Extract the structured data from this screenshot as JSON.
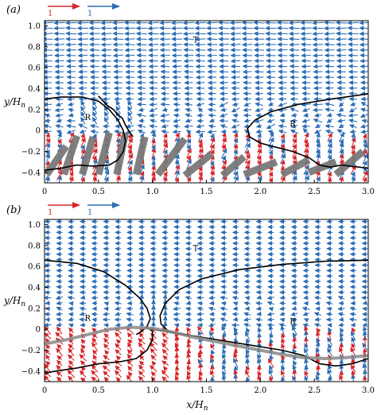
{
  "chart_data": [
    {
      "type": "quiver",
      "panel_label": "(a)",
      "xlabel": "",
      "ylabel": "y/Hn",
      "xlim": [
        0,
        3.0
      ],
      "ylim": [
        -0.5,
        1.05
      ],
      "xticks": [
        "0",
        "0.5",
        "1.0",
        "1.5",
        "2.0",
        "2.5",
        "3.0"
      ],
      "yticks": [
        "−0.4",
        "−0.2",
        "0",
        "0.2",
        "0.4",
        "0.6",
        "0.8",
        "1.0"
      ],
      "x_tick_values": [
        0,
        0.5,
        1.0,
        1.5,
        2.0,
        2.5,
        3.0
      ],
      "y_tick_values": [
        -0.4,
        -0.2,
        0,
        0.2,
        0.4,
        0.6,
        0.8,
        1.0
      ],
      "legend": [
        {
          "label": "1",
          "color": "#d6262b"
        },
        {
          "label": "1",
          "color": "#2d6db5"
        }
      ],
      "annotations": [
        {
          "text": "T",
          "x": 1.4,
          "y": 0.84
        },
        {
          "text": "R",
          "x": 0.4,
          "y": 0.1
        },
        {
          "text": "R",
          "x": 2.3,
          "y": 0.04
        }
      ],
      "series": [
        {
          "style": "solid-black",
          "x": [
            0,
            0.15,
            0.35,
            0.5,
            0.6,
            0.68,
            0.73,
            0.75,
            0.73,
            0.68,
            0.6,
            0.45,
            0.3,
            0.15,
            0
          ],
          "y": [
            0.3,
            0.32,
            0.32,
            0.28,
            0.2,
            0.1,
            0.0,
            -0.1,
            -0.2,
            -0.28,
            -0.33,
            -0.34,
            -0.33,
            -0.36,
            -0.38
          ]
        },
        {
          "style": "solid-black",
          "x": [
            3.0,
            2.65,
            2.35,
            2.1,
            1.95,
            1.88,
            1.9,
            2.0,
            2.15,
            2.3,
            2.45,
            2.55,
            2.65,
            2.75,
            3.0
          ],
          "y": [
            0.35,
            0.3,
            0.25,
            0.18,
            0.1,
            0.02,
            -0.06,
            -0.12,
            -0.16,
            -0.2,
            -0.26,
            -0.33,
            -0.35,
            -0.33,
            -0.36
          ]
        },
        {
          "style": "solid-black",
          "x": [
            0.5,
            0.58,
            0.64,
            0.68,
            0.72,
            0.75,
            0.78,
            0.82
          ],
          "y": [
            0.33,
            0.24,
            0.2,
            0.15,
            0.12,
            0.05,
            0.0,
            -0.06
          ]
        }
      ],
      "obstacles": [
        {
          "x0": 0.02,
          "y0": -0.42,
          "x1": 0.2,
          "y1": -0.15
        },
        {
          "x0": 0.18,
          "y0": -0.42,
          "x1": 0.3,
          "y1": -0.05
        },
        {
          "x0": 0.35,
          "y0": -0.42,
          "x1": 0.45,
          "y1": -0.06
        },
        {
          "x0": 0.5,
          "y0": -0.42,
          "x1": 0.6,
          "y1": -0.02
        },
        {
          "x0": 0.67,
          "y0": -0.42,
          "x1": 0.75,
          "y1": -0.02
        },
        {
          "x0": 0.85,
          "y0": -0.42,
          "x1": 0.93,
          "y1": -0.06
        },
        {
          "x0": 1.05,
          "y0": -0.42,
          "x1": 1.3,
          "y1": -0.08
        },
        {
          "x0": 1.3,
          "y0": -0.43,
          "x1": 1.55,
          "y1": -0.22
        },
        {
          "x0": 1.65,
          "y0": -0.43,
          "x1": 1.85,
          "y1": -0.25
        },
        {
          "x0": 1.85,
          "y0": -0.42,
          "x1": 2.15,
          "y1": -0.3
        },
        {
          "x0": 2.2,
          "y0": -0.42,
          "x1": 2.45,
          "y1": -0.28
        },
        {
          "x0": 2.45,
          "y0": -0.4,
          "x1": 2.7,
          "y1": -0.3
        },
        {
          "x0": 2.7,
          "y0": -0.42,
          "x1": 2.95,
          "y1": -0.2
        }
      ]
    },
    {
      "type": "quiver",
      "panel_label": "(b)",
      "xlabel": "x/Hn",
      "ylabel": "y/Hn",
      "xlim": [
        0,
        3.0
      ],
      "ylim": [
        -0.5,
        1.05
      ],
      "xticks": [
        "0",
        "0.5",
        "1.0",
        "1.5",
        "2.0",
        "2.5",
        "3.0"
      ],
      "yticks": [
        "−0.4",
        "−0.2",
        "0",
        "0.2",
        "0.4",
        "0.6",
        "0.8",
        "1.0"
      ],
      "x_tick_values": [
        0,
        0.5,
        1.0,
        1.5,
        2.0,
        2.5,
        3.0
      ],
      "y_tick_values": [
        -0.4,
        -0.2,
        0,
        0.2,
        0.4,
        0.6,
        0.8,
        1.0
      ],
      "legend": [
        {
          "label": "1",
          "color": "#d6262b"
        },
        {
          "label": "1",
          "color": "#2d6db5"
        }
      ],
      "annotations": [
        {
          "text": "T",
          "x": 1.4,
          "y": 0.75
        },
        {
          "text": "R",
          "x": 0.4,
          "y": 0.08
        },
        {
          "text": "R",
          "x": 2.3,
          "y": 0.05
        }
      ],
      "series": [
        {
          "style": "solid-black",
          "x": [
            0,
            0.3,
            0.55,
            0.75,
            0.88,
            0.95,
            0.98,
            0.95,
            0.9,
            0.85
          ],
          "y": [
            0.66,
            0.63,
            0.55,
            0.42,
            0.3,
            0.2,
            0.1,
            0.03,
            -0.02,
            -0.05
          ]
        },
        {
          "style": "solid-black",
          "x": [
            3.0,
            2.6,
            2.2,
            1.8,
            1.45,
            1.25,
            1.12,
            1.07,
            1.08,
            1.15
          ],
          "y": [
            0.66,
            0.65,
            0.62,
            0.57,
            0.48,
            0.38,
            0.25,
            0.13,
            0.05,
            -0.02
          ]
        },
        {
          "style": "solid-black",
          "x": [
            0.95,
            1.0,
            1.0,
            0.95,
            0.85,
            0.7,
            0.5,
            0.3,
            0.1,
            0
          ],
          "y": [
            0.02,
            -0.02,
            -0.1,
            -0.2,
            -0.28,
            -0.31,
            -0.33,
            -0.37,
            -0.4,
            -0.42
          ]
        },
        {
          "style": "solid-black",
          "x": [
            1.0,
            1.3,
            1.6,
            1.9,
            2.2,
            2.4,
            2.55,
            2.7,
            2.85,
            3.0
          ],
          "y": [
            0.0,
            -0.05,
            -0.1,
            -0.15,
            -0.2,
            -0.25,
            -0.33,
            -0.35,
            -0.33,
            -0.28
          ]
        },
        {
          "style": "surface-grey",
          "x": [
            0,
            0.2,
            0.4,
            0.6,
            0.8,
            1.0,
            1.2,
            1.4,
            1.6,
            1.8,
            2.0,
            2.2,
            2.4,
            2.6,
            2.8,
            3.0
          ],
          "y": [
            -0.14,
            -0.1,
            -0.05,
            0.0,
            0.02,
            0.01,
            -0.03,
            -0.08,
            -0.12,
            -0.16,
            -0.2,
            -0.24,
            -0.27,
            -0.28,
            -0.27,
            -0.25
          ]
        }
      ],
      "obstacles": []
    }
  ]
}
